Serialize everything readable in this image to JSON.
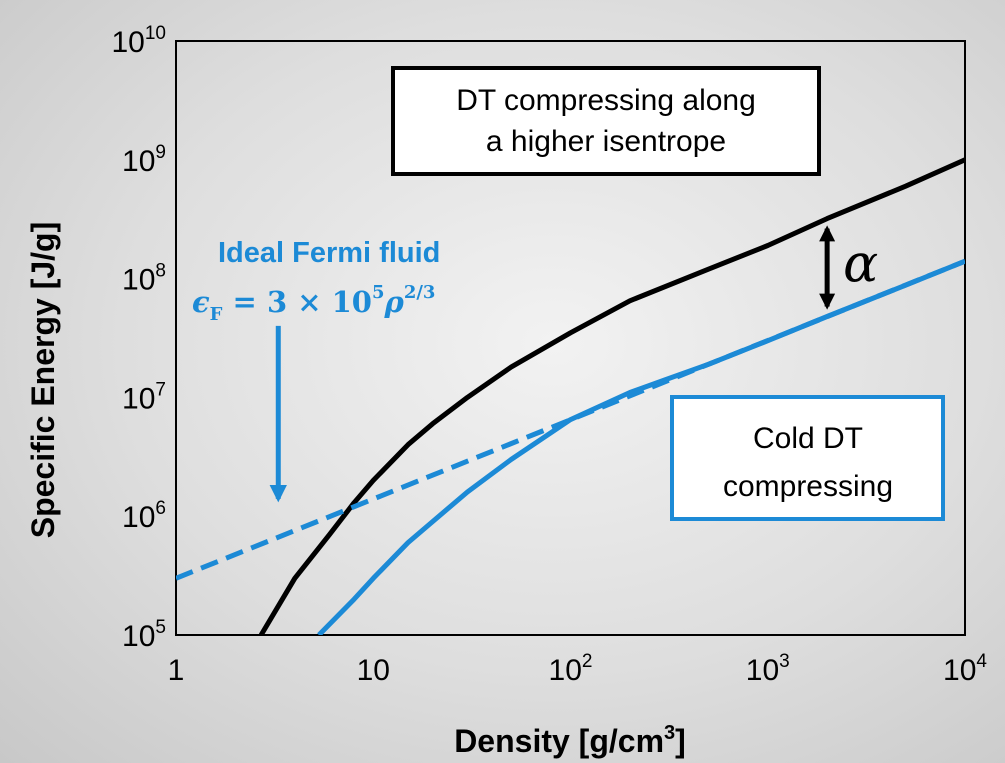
{
  "chart_data": {
    "type": "line",
    "xlabel": "Density [g/cm",
    "xlabel_sup": "3",
    "xlabel_end": "]",
    "ylabel": "Specific Energy [J/g]",
    "xscale": "log",
    "yscale": "log",
    "xlim": [
      1,
      10000
    ],
    "ylim": [
      100000,
      10000000000
    ],
    "x_ticks": [
      {
        "base": "1",
        "exp": ""
      },
      {
        "base": "10",
        "exp": ""
      },
      {
        "base": "10",
        "exp": "2"
      },
      {
        "base": "10",
        "exp": "3"
      },
      {
        "base": "10",
        "exp": "4"
      }
    ],
    "y_ticks": [
      {
        "base": "10",
        "exp": "5"
      },
      {
        "base": "10",
        "exp": "6"
      },
      {
        "base": "10",
        "exp": "7"
      },
      {
        "base": "10",
        "exp": "8"
      },
      {
        "base": "10",
        "exp": "9"
      },
      {
        "base": "10",
        "exp": "10"
      }
    ],
    "grid": false,
    "series": [
      {
        "key": "higher_isentrope",
        "style": "solid",
        "color": "#000000",
        "x": [
          2.7,
          4,
          6,
          8,
          10,
          15,
          20,
          30,
          50,
          100,
          200,
          500,
          1000,
          2000,
          5000,
          10000
        ],
        "y": [
          100000,
          300000,
          700000,
          1300000,
          2000000,
          4000000,
          6000000,
          10000000,
          18000000,
          35000000,
          65000000,
          120000000,
          190000000,
          320000000,
          600000000,
          1000000000
        ]
      },
      {
        "key": "cold_dt",
        "style": "solid",
        "color": "#1c8ad6",
        "x": [
          5.3,
          8,
          10,
          15,
          20,
          30,
          50,
          100,
          200,
          300,
          500,
          1000,
          2000,
          5000,
          10000
        ],
        "y": [
          100000,
          200000,
          300000,
          600000,
          900000,
          1600000,
          3000000,
          6500000,
          11000000,
          14000000,
          19000000,
          30000000,
          48000000,
          88000000,
          140000000
        ]
      },
      {
        "key": "fermi",
        "style": "dashed",
        "color": "#1c8ad6",
        "x": [
          1,
          10000
        ],
        "y": [
          300000,
          140000000
        ]
      }
    ],
    "annotations": {
      "hot_box": {
        "lines": [
          "DT compressing along",
          "a higher isentrope"
        ]
      },
      "cold_box": {
        "lines": [
          "Cold DT",
          "compressing"
        ]
      },
      "fermi_label": {
        "title": "Ideal Fermi fluid",
        "eq_lhs": "ϵ",
        "eq_sub": "F",
        "eq_mid": " = 3 × 10",
        "eq_exp5": "5",
        "eq_rho": "ρ",
        "eq_exp": "2/3"
      },
      "gap_symbol": "α",
      "gap_arrow_x": 2000,
      "fermi_arrow_x": 3.3,
      "fermi_arrow_y": [
        40000000,
        1400000
      ]
    }
  }
}
